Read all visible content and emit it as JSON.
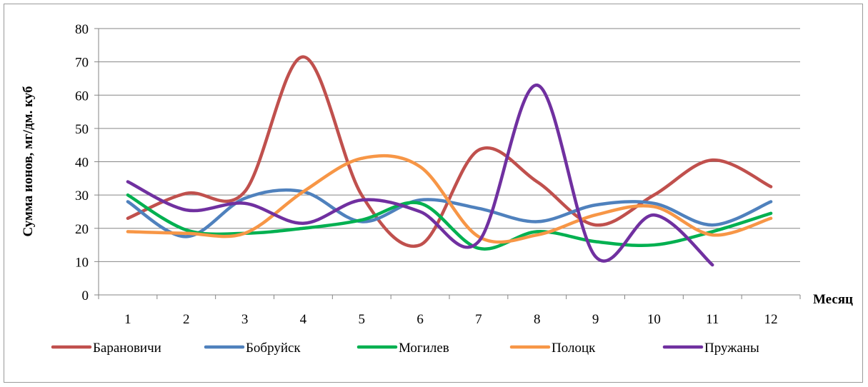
{
  "chart_data": {
    "type": "line",
    "title": "",
    "xlabel": "Месяц",
    "ylabel": "Сумма ионов, мг/дм. куб",
    "categories": [
      "1",
      "2",
      "3",
      "4",
      "5",
      "6",
      "7",
      "8",
      "9",
      "10",
      "11",
      "12"
    ],
    "ylim": [
      0,
      80
    ],
    "yticks": [
      0,
      10,
      20,
      30,
      40,
      50,
      60,
      70,
      80
    ],
    "grid": "horizontal",
    "legend_position": "bottom",
    "smooth": true,
    "series": [
      {
        "name": "Барановичи",
        "color": "#c0504d",
        "values": [
          23,
          30.5,
          31,
          71.5,
          30,
          15,
          43.5,
          34,
          21,
          30,
          40.5,
          32.5
        ]
      },
      {
        "name": "Бобруйск",
        "color": "#4f81bd",
        "values": [
          28,
          17.5,
          29,
          31,
          22,
          28.5,
          26,
          22,
          27,
          27.5,
          21,
          28
        ]
      },
      {
        "name": "Могилев",
        "color": "#00b050",
        "values": [
          30,
          19.5,
          18.5,
          20,
          22.5,
          27.5,
          14,
          19,
          16,
          15,
          19,
          24.5
        ]
      },
      {
        "name": "Полоцк",
        "color": "#f79646",
        "values": [
          19,
          18.5,
          18.5,
          31,
          41,
          38.5,
          17.5,
          18,
          24,
          26.5,
          18,
          23
        ]
      },
      {
        "name": "Пружаны",
        "color": "#7030a0",
        "values": [
          34,
          25.5,
          27.5,
          21.5,
          28.5,
          25,
          16,
          63,
          11.5,
          24,
          9,
          null
        ]
      }
    ]
  }
}
